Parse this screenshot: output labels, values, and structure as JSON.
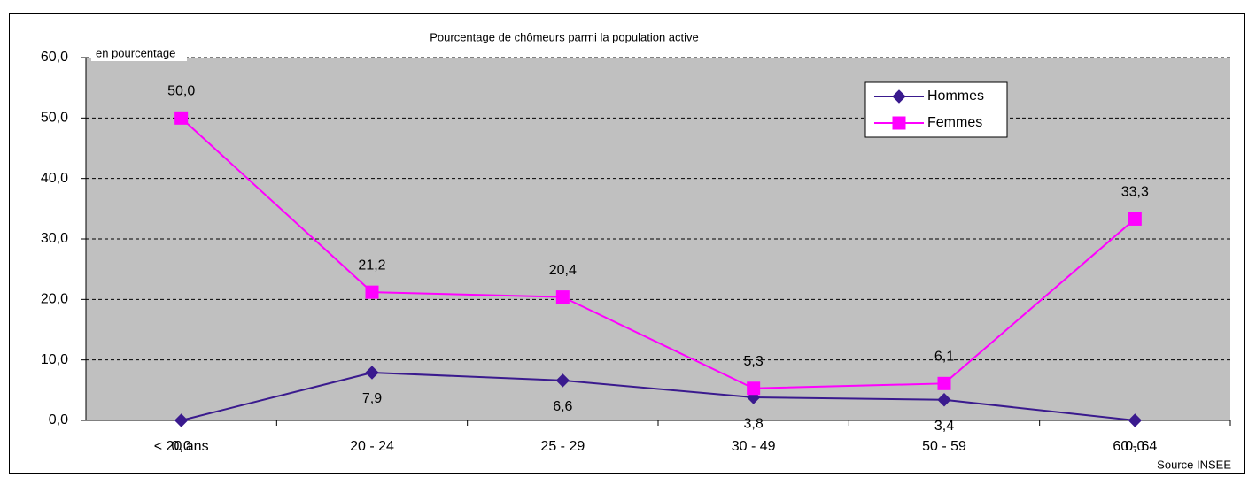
{
  "chart_data": {
    "type": "line",
    "title": "Pourcentage de chômeurs parmi la population active",
    "y_unit_note": "en pourcentage",
    "source": "Source INSEE",
    "categories": [
      "< 20 ans",
      "20 - 24",
      "25 - 29",
      "30 - 49",
      "50 - 59",
      "60 - 64"
    ],
    "series": [
      {
        "name": "Hommes",
        "color": "#3a1a8e",
        "marker": "diamond",
        "label_position": "below",
        "values": [
          0.0,
          7.9,
          6.6,
          3.8,
          3.4,
          0.0
        ],
        "value_labels": [
          "0,0",
          "7,9",
          "6,6",
          "3,8",
          "3,4",
          "0,0"
        ]
      },
      {
        "name": "Femmes",
        "color": "#ff00ff",
        "marker": "square",
        "label_position": "above",
        "values": [
          50.0,
          21.2,
          20.4,
          5.3,
          6.1,
          33.3
        ],
        "value_labels": [
          "50,0",
          "21,2",
          "20,4",
          "5,3",
          "6,1",
          "33,3"
        ]
      }
    ],
    "ylim": [
      0,
      60
    ],
    "yticks": [
      {
        "value": 0,
        "label": "0,0"
      },
      {
        "value": 10,
        "label": "10,0"
      },
      {
        "value": 20,
        "label": "20,0"
      },
      {
        "value": 30,
        "label": "30,0"
      },
      {
        "value": 40,
        "label": "40,0"
      },
      {
        "value": 50,
        "label": "50,0"
      },
      {
        "value": 60,
        "label": "60,0"
      }
    ],
    "grid": true,
    "plot_background": "#c0c0c0",
    "legend_position": "upper right"
  }
}
